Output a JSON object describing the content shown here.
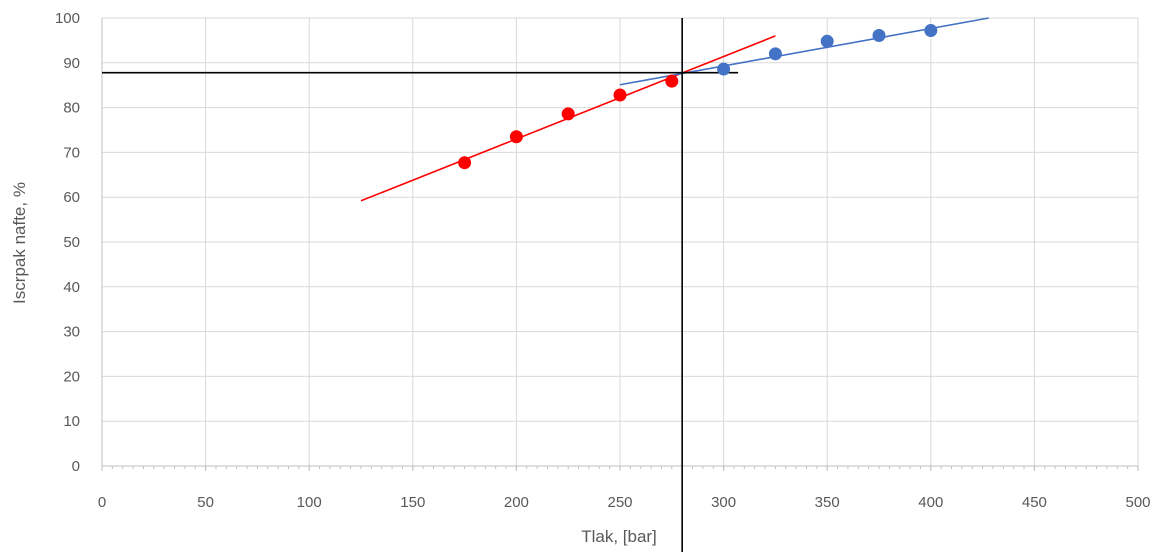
{
  "chart_data": {
    "type": "scatter",
    "xlabel": "Tlak, [bar]",
    "ylabel": "Iscrpak nafte, %",
    "xlim": [
      0,
      500
    ],
    "ylim": [
      0,
      100
    ],
    "x_ticks": [
      0,
      50,
      100,
      150,
      200,
      250,
      300,
      350,
      400,
      450,
      500
    ],
    "y_ticks": [
      0,
      10,
      20,
      30,
      40,
      50,
      60,
      70,
      80,
      90,
      100
    ],
    "grid": true,
    "legend": "none",
    "series": [
      {
        "color": "#ff0000",
        "points": [
          {
            "x": 175,
            "y": 67.7
          },
          {
            "x": 200,
            "y": 73.5
          },
          {
            "x": 225,
            "y": 78.6
          },
          {
            "x": 250,
            "y": 82.8
          },
          {
            "x": 275,
            "y": 85.9
          }
        ],
        "trendline": {
          "from": [
            125,
            59.2
          ],
          "to": [
            325,
            96.0
          ]
        }
      },
      {
        "color": "#4472c4",
        "points": [
          {
            "x": 300,
            "y": 88.6
          },
          {
            "x": 325,
            "y": 92.0
          },
          {
            "x": 350,
            "y": 94.8
          },
          {
            "x": 375,
            "y": 96.1
          },
          {
            "x": 400,
            "y": 97.2
          }
        ],
        "trendline": {
          "from": [
            250,
            85.1
          ],
          "to": [
            428,
            100.0
          ]
        }
      }
    ],
    "reference_lines": [
      {
        "type": "horizontal",
        "y": 87.8,
        "from_x": 0,
        "to_x": 307,
        "color": "#000000"
      },
      {
        "type": "vertical",
        "x": 280,
        "color": "#000000"
      }
    ]
  }
}
